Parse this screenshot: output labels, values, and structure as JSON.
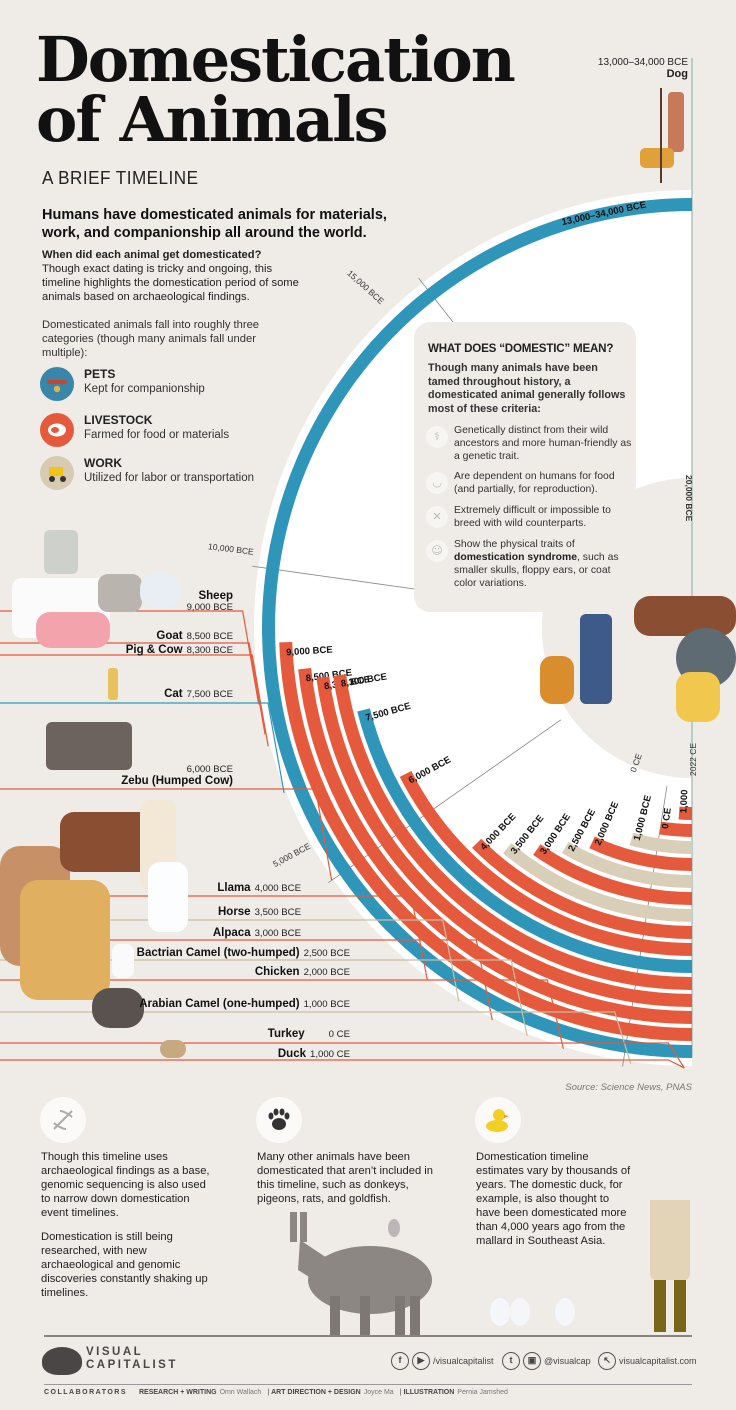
{
  "header": {
    "title_line1": "Domestication",
    "title_line2": "of Animals",
    "subtitle": "A BRIEF TIMELINE",
    "lede": "Humans have domesticated animals for materials, work, and companionship all around the world.",
    "question": "When did each animal get domesticated?",
    "question_body": "Though exact dating is tricky and ongoing, this timeline highlights the domestication period of some animals based on archaeological findings.",
    "categories_intro": "Domesticated animals fall into roughly three categories (though many animals fall under multiple):"
  },
  "legend": [
    {
      "key": "pets",
      "name": "PETS",
      "desc": "Kept for companionship",
      "color": "#3a86a8",
      "icon": "collar-icon"
    },
    {
      "key": "livestock",
      "name": "LIVESTOCK",
      "desc": "Farmed for food or materials",
      "color": "#e55a3c",
      "icon": "steak-icon"
    },
    {
      "key": "work",
      "name": "WORK",
      "desc": "Utilized for labor or transportation",
      "color": "#d8cbb3",
      "icon": "tractor-icon"
    }
  ],
  "colors": {
    "pets": "#3096b9",
    "livestock": "#e55a3c",
    "work": "#d9ceb8",
    "background": "#efebe6",
    "ring_inner": "#ffffff"
  },
  "sidebox": {
    "heading": "WHAT DOES “DOMESTIC” MEAN?",
    "intro": "Though many animals have been tamed throughout history, a domesticated animal generally follows most of these criteria:",
    "criteria": [
      {
        "icon": "dna-icon",
        "text": "Genetically distinct from their wild ancestors and more human-friendly as a genetic trait."
      },
      {
        "icon": "food-bowl-icon",
        "text": "Are dependent on humans for food (and partially, for reproduction)."
      },
      {
        "icon": "no-breed-icon",
        "text": "Extremely difficult or impossible to breed with wild counterparts."
      },
      {
        "icon": "head-profile-icon",
        "text_pre": "Show the physical traits of ",
        "text_bold": "domestication syndrome",
        "text_post": ", such as smaller skulls, floppy ears, or coat color variations."
      }
    ]
  },
  "dog_label": {
    "date": "13,000–34,000 BCE",
    "name": "Dog"
  },
  "axis_ticks": [
    {
      "label": "20,000 BCE"
    },
    {
      "label": "15,000 BCE"
    },
    {
      "label": "10,000 BCE"
    },
    {
      "label": "5,000 BCE"
    },
    {
      "label": "0 CE"
    },
    {
      "label": "2022 CE"
    }
  ],
  "chart_data": {
    "type": "radial_timeline",
    "title": "Domestication of Animals",
    "subtitle": "A Brief Timeline",
    "axis": {
      "unit": "year",
      "ticks": [
        "20,000 BCE",
        "15,000 BCE",
        "10,000 BCE",
        "5,000 BCE",
        "0 CE",
        "2022 CE"
      ],
      "end": "2022 CE"
    },
    "legend": [
      "Pets",
      "Livestock",
      "Work"
    ],
    "series": [
      {
        "name": "Dog",
        "date_label": "13,000–34,000 BCE",
        "band_label": "13,000–34,000 BCE",
        "start_year": -13000,
        "category": "pets"
      },
      {
        "name": "Sheep",
        "date_label": "9,000 BCE",
        "band_label": "9,000 BCE",
        "start_year": -9000,
        "category": "livestock"
      },
      {
        "name": "Goat",
        "date_label": "8,500 BCE",
        "band_label": "8,500 BCE",
        "start_year": -8500,
        "category": "livestock"
      },
      {
        "name": "Pig & Cow",
        "date_label": "8,300 BCE",
        "band_label": "8,300 BCE",
        "start_year": -8300,
        "category": "livestock",
        "bands": 2
      },
      {
        "name": "Cat",
        "date_label": "7,500 BCE",
        "band_label": "7,500 BCE",
        "start_year": -7500,
        "category": "pets"
      },
      {
        "name": "Zebu (Humped Cow)",
        "date_label": "6,000 BCE",
        "band_label": "6,000 BCE",
        "start_year": -6000,
        "category": "livestock"
      },
      {
        "name": "Llama",
        "date_label": "4,000 BCE",
        "band_label": "4,000 BCE",
        "start_year": -4000,
        "category": "livestock"
      },
      {
        "name": "Horse",
        "date_label": "3,500 BCE",
        "band_label": "3,500 BCE",
        "start_year": -3500,
        "category": "work"
      },
      {
        "name": "Alpaca",
        "date_label": "3,000 BCE",
        "band_label": "3,000 BCE",
        "start_year": -3000,
        "category": "livestock"
      },
      {
        "name": "Bactrian Camel (two-humped)",
        "date_label": "2,500 BCE",
        "band_label": "2,500 BCE",
        "start_year": -2500,
        "category": "work"
      },
      {
        "name": "Chicken",
        "date_label": "2,000 BCE",
        "band_label": "2,000 BCE",
        "start_year": -2000,
        "category": "livestock"
      },
      {
        "name": "Arabian Camel (one-humped)",
        "date_label": "1,000 BCE",
        "band_label": "1,000 BCE",
        "start_year": -1000,
        "category": "work"
      },
      {
        "name": "Turkey",
        "date_label": "0 CE",
        "band_label": "0 CE",
        "start_year": 0,
        "category": "livestock"
      },
      {
        "name": "Duck",
        "date_label": "1,000 CE",
        "band_label": "1,000",
        "start_year": 1000,
        "category": "livestock"
      }
    ]
  },
  "animal_labels": [
    {
      "name": "Sheep",
      "date": "9,000 BCE",
      "stacked": true
    },
    {
      "name": "Goat",
      "date": "8,500 BCE"
    },
    {
      "name": "Pig & Cow",
      "date": "8,300 BCE"
    },
    {
      "name": "Cat",
      "date": "7,500 BCE"
    },
    {
      "name": "Zebu (Humped Cow)",
      "date": "6,000 BCE",
      "stacked": true
    },
    {
      "name": "Llama",
      "date": "4,000 BCE"
    },
    {
      "name": "Horse",
      "date": "3,500 BCE"
    },
    {
      "name": "Alpaca",
      "date": "3,000 BCE"
    },
    {
      "name": "Bactrian Camel (two-humped)",
      "date": "2,500 BCE"
    },
    {
      "name": "Chicken",
      "date": "2,000 BCE"
    },
    {
      "name": "Arabian Camel (one-humped)",
      "date": "1,000 BCE"
    },
    {
      "name": "Turkey",
      "date": "0 CE"
    },
    {
      "name": "Duck",
      "date": "1,000 CE"
    }
  ],
  "source": "Source: Science News, PNAS",
  "footnotes": [
    {
      "icon": "dna-icon",
      "paragraphs": [
        "Though this timeline uses archaeological findings as a base, genomic sequencing is also used to narrow down domestication event timelines.",
        "Domestication is still being researched, with new archaeological and genomic discoveries constantly shaking up timelines."
      ]
    },
    {
      "icon": "paw-icon",
      "paragraphs": [
        "Many other animals have been domesticated that aren’t included in this timeline, such as donkeys, pigeons, rats, and goldfish."
      ]
    },
    {
      "icon": "rubber-duck-icon",
      "paragraphs": [
        "Domestication timeline estimates vary by thousands of years. The domestic duck, for example, is also thought to have been domesticated more than 4,000 years ago from the mallard in Southeast Asia."
      ]
    }
  ],
  "footer": {
    "logo_line1": "VISUAL",
    "logo_line2": "CAPITALIST",
    "social_handle_1": "/visualcapitalist",
    "social_handle_2": "@visualcap",
    "website": "visualcapitalist.com",
    "collaborators_label": "COLLABORATORS",
    "credits": [
      {
        "role": "RESEARCH + WRITING",
        "name": "Omri Wallach"
      },
      {
        "role": "ART DIRECTION + DESIGN",
        "name": "Joyce Ma"
      },
      {
        "role": "ILLUSTRATION",
        "name": "Pernia Jamshed"
      }
    ]
  }
}
